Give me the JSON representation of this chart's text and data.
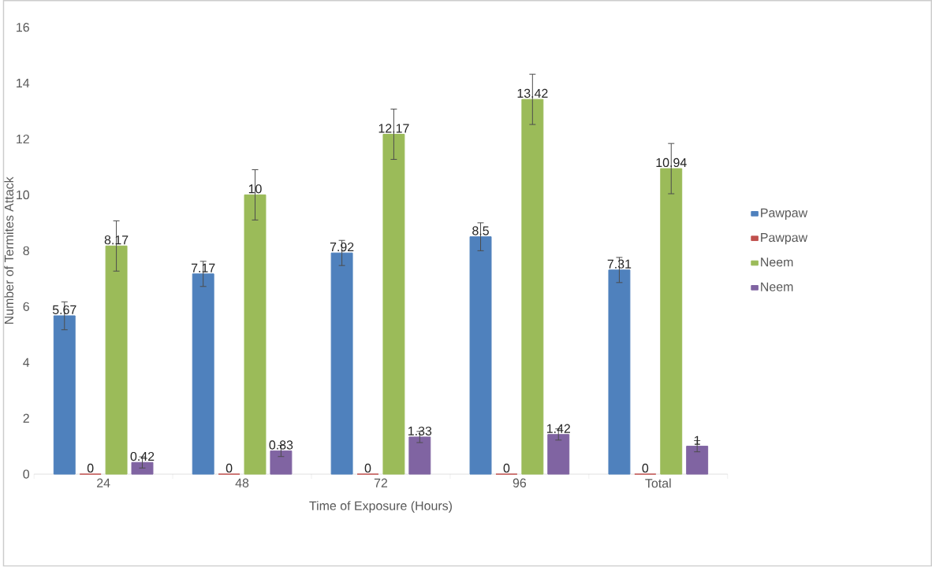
{
  "chart_data": {
    "type": "bar",
    "xlabel": "Time of Exposure (Hours)",
    "ylabel": "Number of Termites Attack",
    "categories": [
      "24",
      "48",
      "72",
      "96",
      "Total"
    ],
    "series": [
      {
        "name": "Pawpaw",
        "color": "#4f81bd",
        "values": [
          5.67,
          7.17,
          7.92,
          8.5,
          7.31
        ],
        "errors": [
          0.5,
          0.45,
          0.45,
          0.5,
          0.45
        ]
      },
      {
        "name": "Pawpaw",
        "color": "#c0504d",
        "values": [
          0,
          0,
          0,
          0,
          0
        ]
      },
      {
        "name": "Neem",
        "color": "#9bbb59",
        "values": [
          8.17,
          10,
          12.17,
          13.42,
          10.94
        ],
        "errors": [
          0.9,
          0.9,
          0.9,
          0.9,
          0.9
        ]
      },
      {
        "name": "Neem",
        "color": "#8064a2",
        "values": [
          0.42,
          0.83,
          1.33,
          1.42,
          1
        ],
        "errors": [
          0.2,
          0.2,
          0.2,
          0.2,
          0.2
        ]
      }
    ],
    "ylim": [
      0,
      16
    ],
    "yticks": [
      0,
      2,
      4,
      6,
      8,
      10,
      12,
      14,
      16
    ],
    "data_labels": true,
    "legend": "right",
    "grid": false
  }
}
